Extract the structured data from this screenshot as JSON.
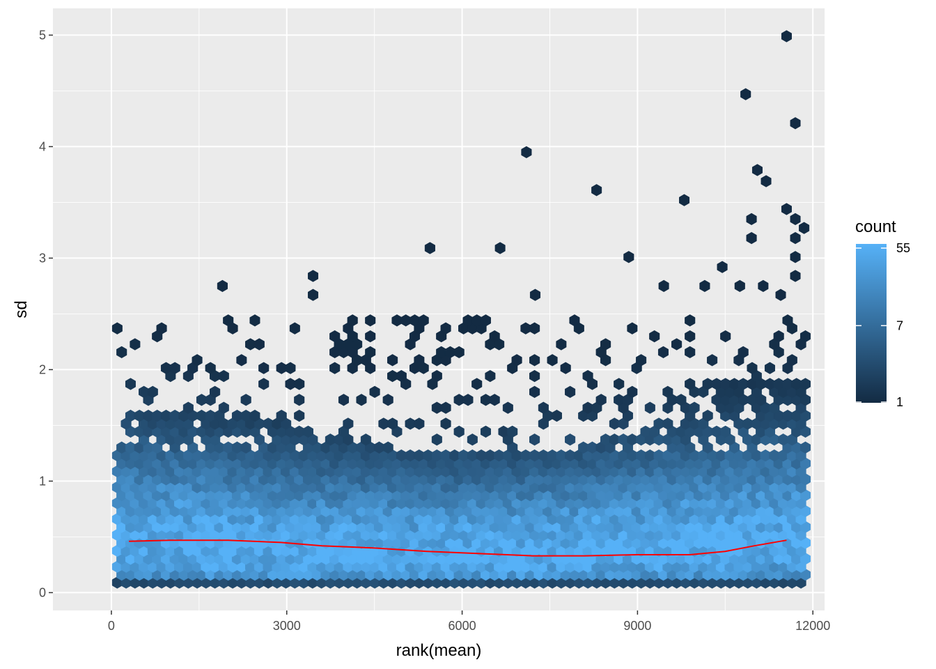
{
  "chart_data": {
    "type": "hexbin",
    "title": "",
    "xlabel": "rank(mean)",
    "ylabel": "sd",
    "xlim": [
      -1000,
      12200
    ],
    "ylim": [
      -0.16,
      5.24
    ],
    "xticks": [
      0,
      3000,
      6000,
      9000,
      12000
    ],
    "xtick_labels": [
      "0",
      "3000",
      "6000",
      "9000",
      "12000"
    ],
    "yticks": [
      0,
      1,
      2,
      3,
      4,
      5
    ],
    "ytick_labels": [
      "0",
      "1",
      "2",
      "3",
      "4",
      "5"
    ],
    "grid": true,
    "panel_background": "#ebebeb",
    "grid_color": "#ffffff",
    "legend": {
      "title": "count",
      "placement": "right",
      "scale": "log",
      "breaks": [
        55,
        7,
        1
      ],
      "break_labels": [
        "55",
        "7",
        "1"
      ],
      "low_color": "#132b43",
      "high_color": "#56b1f7"
    },
    "smooth_line": {
      "color": "#ff0000",
      "x": [
        300,
        1000,
        2000,
        2900,
        3600,
        4500,
        5400,
        6300,
        7200,
        8100,
        9000,
        9900,
        10500,
        11000,
        11550
      ],
      "y": [
        0.46,
        0.47,
        0.47,
        0.45,
        0.42,
        0.4,
        0.37,
        0.35,
        0.33,
        0.33,
        0.34,
        0.34,
        0.37,
        0.42,
        0.47
      ]
    },
    "outliers": [
      {
        "x": 11550,
        "y": 4.99
      },
      {
        "x": 10850,
        "y": 4.47
      },
      {
        "x": 11700,
        "y": 4.21
      },
      {
        "x": 7100,
        "y": 3.95
      },
      {
        "x": 11050,
        "y": 3.79
      },
      {
        "x": 11200,
        "y": 3.69
      },
      {
        "x": 8300,
        "y": 3.61
      },
      {
        "x": 9800,
        "y": 3.52
      },
      {
        "x": 11550,
        "y": 3.44
      },
      {
        "x": 10950,
        "y": 3.35
      },
      {
        "x": 11700,
        "y": 3.35
      },
      {
        "x": 11850,
        "y": 3.27
      },
      {
        "x": 10950,
        "y": 3.18
      },
      {
        "x": 11700,
        "y": 3.18
      },
      {
        "x": 5450,
        "y": 3.09
      },
      {
        "x": 6650,
        "y": 3.09
      },
      {
        "x": 8850,
        "y": 3.01
      },
      {
        "x": 11700,
        "y": 3.01
      },
      {
        "x": 10450,
        "y": 2.92
      },
      {
        "x": 3450,
        "y": 2.84
      },
      {
        "x": 11700,
        "y": 2.84
      },
      {
        "x": 1900,
        "y": 2.75
      },
      {
        "x": 9450,
        "y": 2.75
      },
      {
        "x": 10150,
        "y": 2.75
      },
      {
        "x": 10750,
        "y": 2.75
      },
      {
        "x": 11150,
        "y": 2.75
      },
      {
        "x": 3450,
        "y": 2.67
      },
      {
        "x": 7250,
        "y": 2.67
      },
      {
        "x": 11450,
        "y": 2.67
      }
    ]
  }
}
